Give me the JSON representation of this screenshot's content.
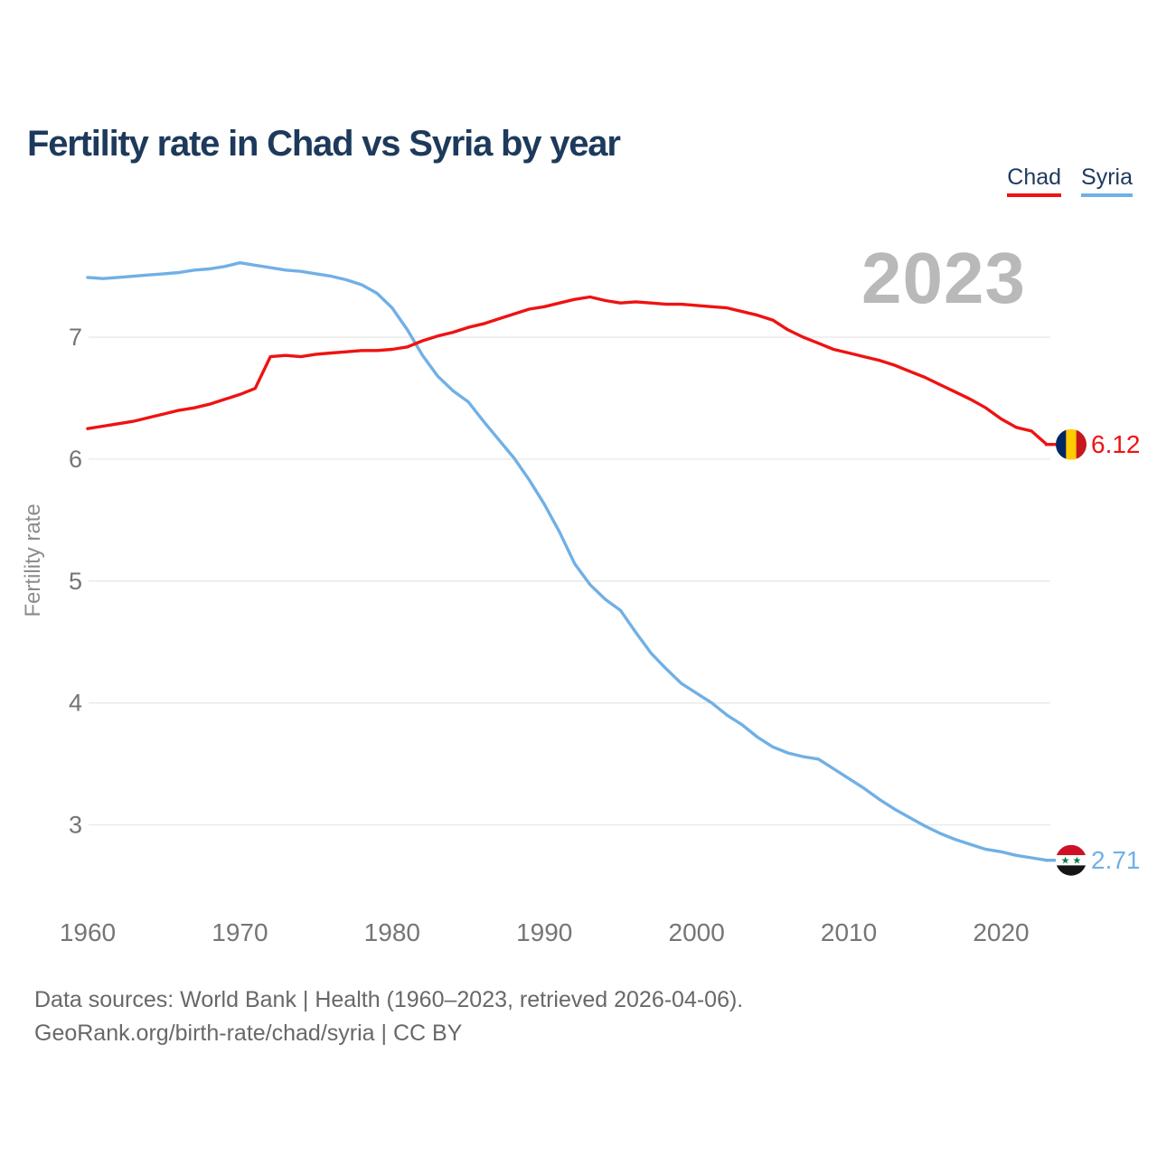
{
  "title": "Fertility rate in Chad vs Syria by year",
  "watermark": "2023",
  "legend": {
    "items": [
      {
        "label": "Chad",
        "color": "#ef1212"
      },
      {
        "label": "Syria",
        "color": "#70b0e5"
      }
    ]
  },
  "footer": {
    "line1": "Data sources: World Bank | Health (1960–2023, retrieved 2026-04-06).",
    "line2": "GeoRank.org/birth-rate/chad/syria | CC BY"
  },
  "colors": {
    "grid": "#e8e8e8",
    "tick_label": "#757575",
    "axis_title": "#8c8c8c"
  },
  "flags": {
    "chad": {
      "type": "vertical",
      "stripes": [
        "#002664",
        "#fecb00",
        "#c7171e"
      ]
    },
    "syria": {
      "type": "horizontal",
      "stripes": [
        "#ce1126",
        "#ffffff",
        "#151515"
      ],
      "star_color": "#007a3d",
      "stars": 2,
      "star_glyph": "★"
    }
  },
  "chart_data": {
    "type": "line",
    "title": "Fertility rate in Chad vs Syria by year",
    "xlabel": "",
    "ylabel": "Fertility rate",
    "grid": "horizontal",
    "legend_position": "top-right",
    "ylim": [
      2.45,
      7.9
    ],
    "xlim": [
      1960,
      2023
    ],
    "yticks": [
      7,
      6,
      5,
      4,
      3
    ],
    "xticks": [
      1960,
      1970,
      1980,
      1990,
      2000,
      2010,
      2020
    ],
    "x": [
      1960,
      1961,
      1962,
      1963,
      1964,
      1965,
      1966,
      1967,
      1968,
      1969,
      1970,
      1971,
      1972,
      1973,
      1974,
      1975,
      1976,
      1977,
      1978,
      1979,
      1980,
      1981,
      1982,
      1983,
      1984,
      1985,
      1986,
      1987,
      1988,
      1989,
      1990,
      1991,
      1992,
      1993,
      1994,
      1995,
      1996,
      1997,
      1998,
      1999,
      2000,
      2001,
      2002,
      2003,
      2004,
      2005,
      2006,
      2007,
      2008,
      2009,
      2010,
      2011,
      2012,
      2013,
      2014,
      2015,
      2016,
      2017,
      2018,
      2019,
      2020,
      2021,
      2022,
      2023
    ],
    "series": [
      {
        "name": "Syria",
        "color": "#70b0e5",
        "flag": "syria",
        "end_label": "2.71",
        "end_value": 2.71,
        "values": [
          7.49,
          7.48,
          7.49,
          7.5,
          7.51,
          7.52,
          7.53,
          7.55,
          7.56,
          7.58,
          7.61,
          7.59,
          7.57,
          7.55,
          7.54,
          7.52,
          7.5,
          7.47,
          7.43,
          7.36,
          7.24,
          7.06,
          6.85,
          6.68,
          6.56,
          6.47,
          6.31,
          6.16,
          6.01,
          5.83,
          5.63,
          5.4,
          5.14,
          4.97,
          4.85,
          4.76,
          4.58,
          4.41,
          4.28,
          4.16,
          4.08,
          4.0,
          3.9,
          3.82,
          3.72,
          3.64,
          3.59,
          3.56,
          3.54,
          3.46,
          3.38,
          3.3,
          3.21,
          3.13,
          3.06,
          2.99,
          2.93,
          2.88,
          2.84,
          2.8,
          2.78,
          2.75,
          2.73,
          2.71
        ]
      },
      {
        "name": "Chad",
        "color": "#ef1212",
        "flag": "chad",
        "end_label": "6.12",
        "end_value": 6.12,
        "values": [
          6.25,
          6.27,
          6.29,
          6.31,
          6.34,
          6.37,
          6.4,
          6.42,
          6.45,
          6.49,
          6.53,
          6.58,
          6.84,
          6.85,
          6.84,
          6.86,
          6.87,
          6.88,
          6.89,
          6.89,
          6.9,
          6.92,
          6.97,
          7.01,
          7.04,
          7.08,
          7.11,
          7.15,
          7.19,
          7.23,
          7.25,
          7.28,
          7.31,
          7.33,
          7.3,
          7.28,
          7.29,
          7.28,
          7.27,
          7.27,
          7.26,
          7.25,
          7.24,
          7.21,
          7.18,
          7.14,
          7.06,
          7.0,
          6.95,
          6.9,
          6.87,
          6.84,
          6.81,
          6.77,
          6.72,
          6.67,
          6.61,
          6.55,
          6.49,
          6.42,
          6.33,
          6.26,
          6.23,
          6.12
        ]
      }
    ]
  }
}
